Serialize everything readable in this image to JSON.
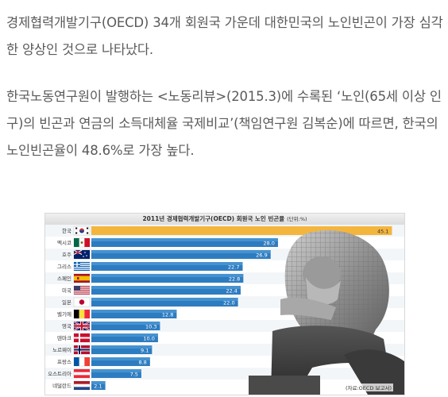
{
  "article": {
    "paragraph1": "경제협력개발기구(OECD) 34개 회원국 가운데 대한민국의 노인빈곤이 가장 심각한 양상인 것으로 나타났다.",
    "paragraph2": "한국노동연구원이 발행하는 <노동리뷰>(2015.3)에 수록된 ‘노인(65세 이상 인구)의 빈곤과 연금의 소득대체율 국제비교’(책임연구원 김복순)에 따르면, 한국의 노인빈곤율이 48.6%로 가장 높다."
  },
  "figure": {
    "title": "2011년 경제협력개발기구(OECD) 회원국 노인 빈곤율",
    "unit": "(단위:%)",
    "source": "(자료:OECD 보고서)"
  },
  "colors": {
    "highlight_bar": "#f4b53c",
    "bar": "#2e7cc0",
    "bar_light": "#5aa4dc"
  },
  "chart_data": {
    "type": "bar",
    "orientation": "horizontal",
    "title": "2011년 경제협력개발기구(OECD) 회원국 노인 빈곤율",
    "unit": "(단위:%)",
    "categories": [
      "한국",
      "멕시코",
      "호주",
      "그리스",
      "스페인",
      "미국",
      "일본",
      "벨기에",
      "영국",
      "덴마크",
      "노르웨이",
      "프랑스",
      "오스트리아",
      "네덜란드"
    ],
    "flags": [
      "korea-flag-icon",
      "mexico-flag-icon",
      "australia-flag-icon",
      "greece-flag-icon",
      "spain-flag-icon",
      "usa-flag-icon",
      "japan-flag-icon",
      "belgium-flag-icon",
      "uk-flag-icon",
      "denmark-flag-icon",
      "norway-flag-icon",
      "france-flag-icon",
      "austria-flag-icon",
      "netherlands-flag-icon"
    ],
    "values": [
      45.1,
      28.0,
      26.9,
      22.7,
      22.8,
      22.4,
      22.0,
      12.8,
      10.3,
      10.0,
      9.1,
      8.8,
      7.5,
      2.1
    ],
    "value_labels": [
      "45.1",
      "28.0",
      "26.9",
      "22.7",
      "22.8",
      "22.4",
      "22.0",
      "12.8",
      "10.3",
      "10.0",
      "9.1",
      "8.8",
      "7.5",
      "2.1"
    ],
    "xlim": [
      0,
      46
    ],
    "highlight": "한국",
    "source": "(자료:OECD 보고서)"
  }
}
